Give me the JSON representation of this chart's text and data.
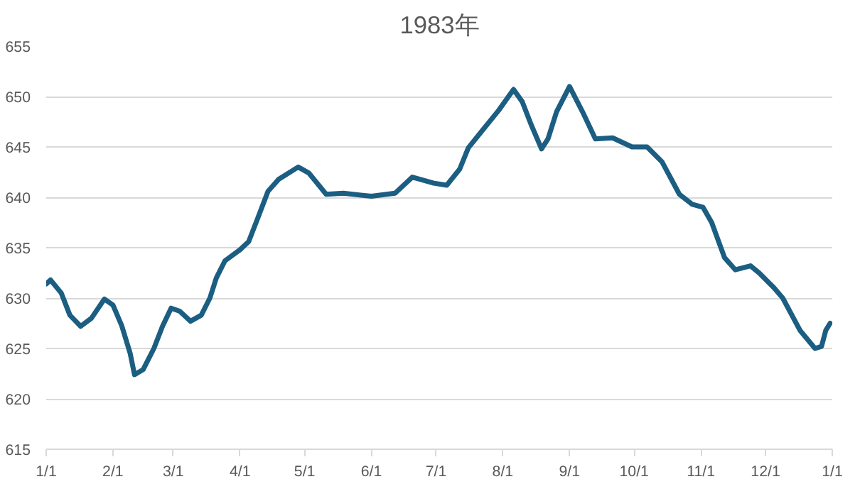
{
  "chart_data": {
    "type": "line",
    "title": "1983年",
    "x": [
      "1983-01-01",
      "1983-01-03",
      "1983-01-08",
      "1983-01-12",
      "1983-01-17",
      "1983-01-22",
      "1983-01-28",
      "1983-02-01",
      "1983-02-05",
      "1983-02-09",
      "1983-02-11",
      "1983-02-15",
      "1983-02-20",
      "1983-02-24",
      "1983-02-28",
      "1983-03-04",
      "1983-03-09",
      "1983-03-14",
      "1983-03-18",
      "1983-03-21",
      "1983-03-25",
      "1983-04-01",
      "1983-04-05",
      "1983-04-09",
      "1983-04-14",
      "1983-04-19",
      "1983-04-28",
      "1983-05-03",
      "1983-05-11",
      "1983-05-19",
      "1983-06-01",
      "1983-06-12",
      "1983-06-20",
      "1983-06-30",
      "1983-07-06",
      "1983-07-12",
      "1983-07-16",
      "1983-07-22",
      "1983-07-30",
      "1983-08-06",
      "1983-08-10",
      "1983-08-14",
      "1983-08-19",
      "1983-08-22",
      "1983-08-26",
      "1983-09-01",
      "1983-09-07",
      "1983-09-13",
      "1983-09-21",
      "1983-09-30",
      "1983-10-07",
      "1983-10-14",
      "1983-10-22",
      "1983-10-28",
      "1983-11-02",
      "1983-11-06",
      "1983-11-12",
      "1983-11-17",
      "1983-11-24",
      "1983-11-28",
      "1983-12-05",
      "1983-12-09",
      "1983-12-17",
      "1983-12-24",
      "1983-12-27",
      "1983-12-29",
      "1983-12-31"
    ],
    "series": [
      {
        "color": "#1b5e82",
        "values": [
          631.4,
          631.8,
          630.5,
          628.3,
          627.2,
          628.0,
          629.9,
          629.3,
          627.3,
          624.5,
          622.4,
          622.9,
          625.0,
          627.2,
          629.0,
          628.7,
          627.7,
          628.3,
          630.0,
          632.0,
          633.7,
          634.8,
          635.6,
          637.8,
          640.6,
          641.8,
          643.0,
          642.4,
          640.3,
          640.4,
          640.1,
          640.4,
          642.0,
          641.4,
          641.2,
          642.8,
          644.9,
          646.5,
          648.6,
          650.7,
          649.5,
          647.3,
          644.8,
          645.8,
          648.5,
          651.0,
          648.5,
          645.8,
          645.9,
          645.0,
          645.0,
          643.5,
          640.3,
          639.3,
          639.0,
          637.5,
          634.0,
          632.8,
          633.2,
          632.5,
          631.0,
          630.0,
          626.8,
          625.0,
          625.2,
          626.8,
          627.5
        ]
      }
    ],
    "ylim": [
      615,
      655
    ],
    "yticks": [
      615,
      620,
      625,
      630,
      635,
      640,
      645,
      650,
      655
    ],
    "xlim": [
      "1983-01-01",
      "1984-01-01"
    ],
    "xticks": [
      {
        "value": "1983-01-01",
        "label": "1/1"
      },
      {
        "value": "1983-02-01",
        "label": "2/1"
      },
      {
        "value": "1983-03-01",
        "label": "3/1"
      },
      {
        "value": "1983-04-01",
        "label": "4/1"
      },
      {
        "value": "1983-05-01",
        "label": "5/1"
      },
      {
        "value": "1983-06-01",
        "label": "6/1"
      },
      {
        "value": "1983-07-01",
        "label": "7/1"
      },
      {
        "value": "1983-08-01",
        "label": "8/1"
      },
      {
        "value": "1983-09-01",
        "label": "9/1"
      },
      {
        "value": "1983-10-01",
        "label": "10/1"
      },
      {
        "value": "1983-11-01",
        "label": "11/1"
      },
      {
        "value": "1983-12-01",
        "label": "12/1"
      },
      {
        "value": "1984-01-01",
        "label": "1/1"
      }
    ],
    "grid": "y",
    "line_style": "solid"
  }
}
